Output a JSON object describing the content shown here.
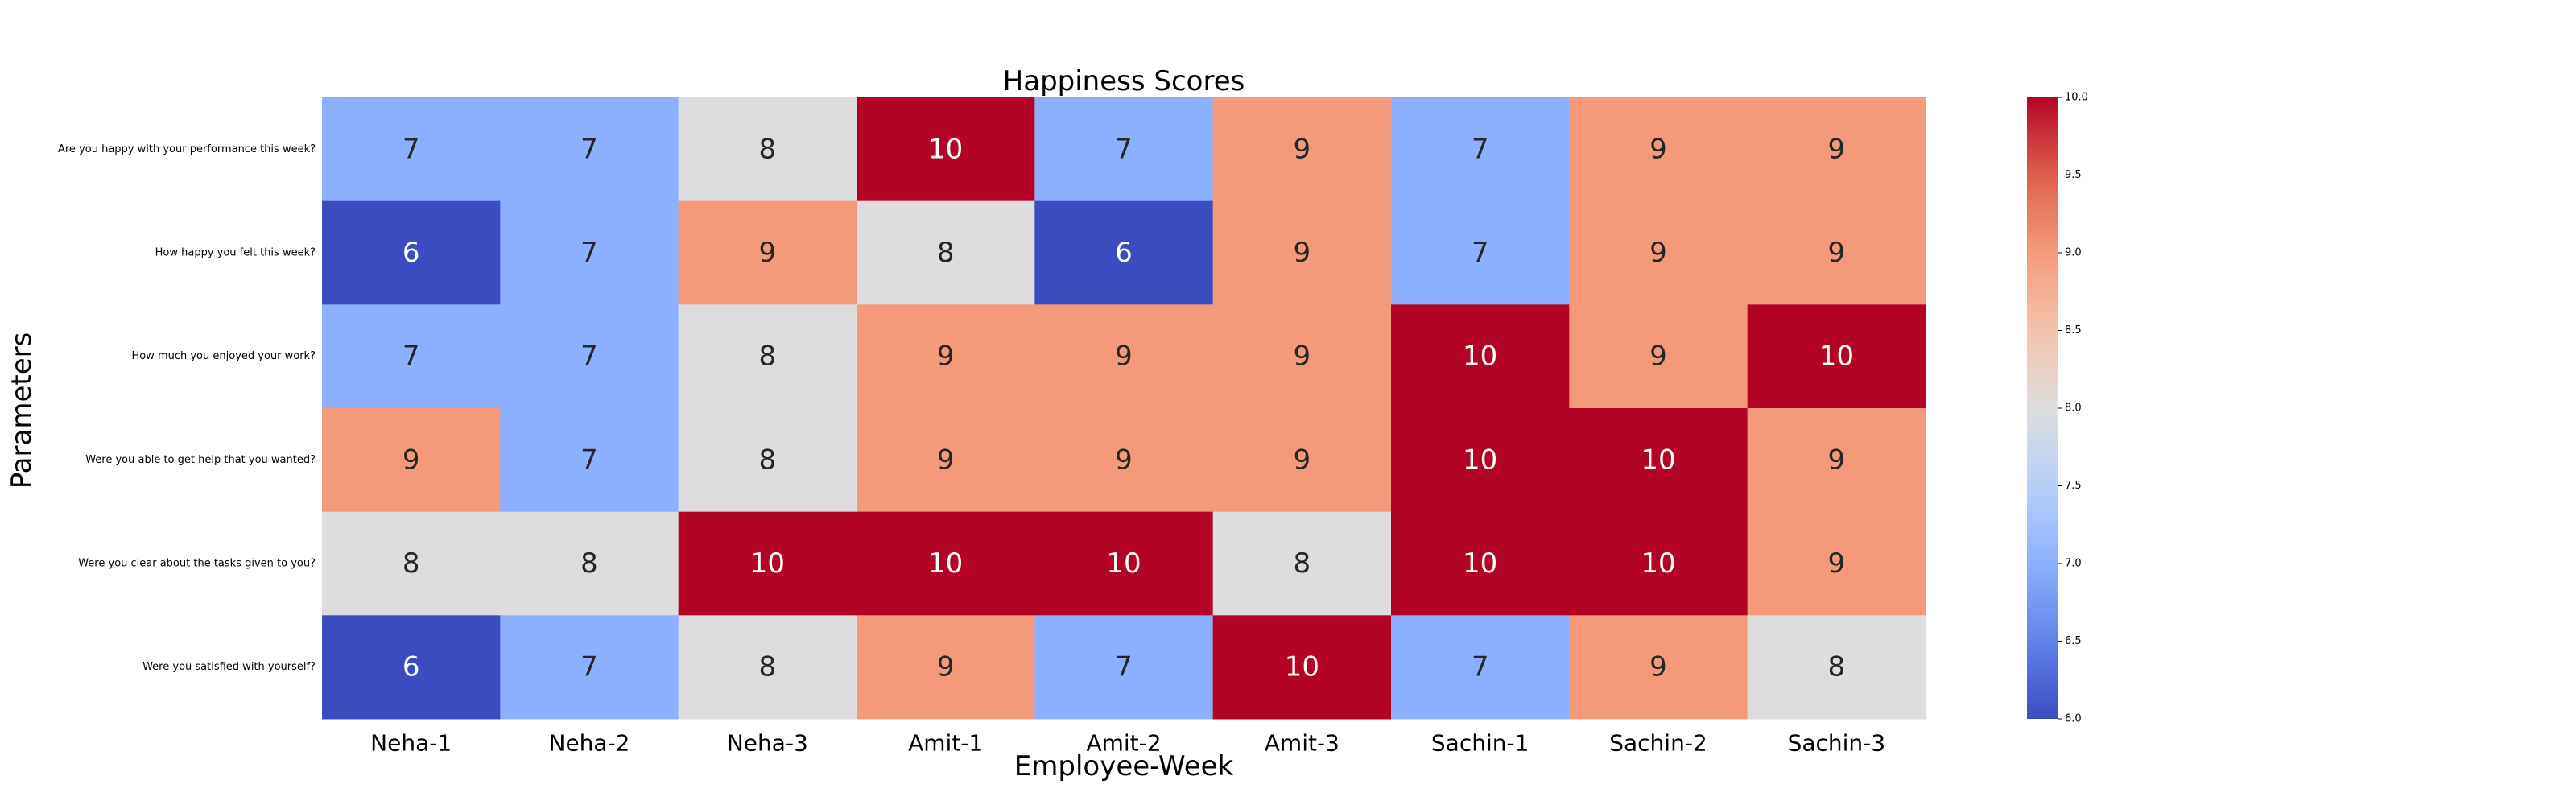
{
  "chart_data": {
    "type": "heatmap",
    "title": "Happiness Scores",
    "xlabel": "Employee-Week",
    "ylabel": "Parameters",
    "x_categories": [
      "Neha-1",
      "Neha-2",
      "Neha-3",
      "Amit-1",
      "Amit-2",
      "Amit-3",
      "Sachin-1",
      "Sachin-2",
      "Sachin-3"
    ],
    "y_categories": [
      "Are you happy with your performance this week?",
      "How happy you felt this week?",
      "How much you enjoyed your work?",
      "Were you able to get help that you wanted?",
      "Were you clear about the tasks given to you?",
      "Were you satisfied with yourself?"
    ],
    "values": [
      [
        7,
        7,
        8,
        10,
        7,
        9,
        7,
        9,
        9
      ],
      [
        6,
        7,
        9,
        8,
        6,
        9,
        7,
        9,
        9
      ],
      [
        7,
        7,
        8,
        9,
        9,
        9,
        10,
        9,
        10
      ],
      [
        9,
        7,
        8,
        9,
        9,
        9,
        10,
        10,
        9
      ],
      [
        8,
        8,
        10,
        10,
        10,
        8,
        10,
        10,
        9
      ],
      [
        6,
        7,
        8,
        9,
        7,
        10,
        7,
        9,
        8
      ]
    ],
    "colormap": "coolwarm",
    "vmin": 6.0,
    "vmax": 10.0,
    "colorbar_ticks": [
      "6.0",
      "6.5",
      "7.0",
      "7.5",
      "8.0",
      "8.5",
      "9.0",
      "9.5",
      "10.0"
    ],
    "colorbar_tick_values": [
      6.0,
      6.5,
      7.0,
      7.5,
      8.0,
      8.5,
      9.0,
      9.5,
      10.0
    ],
    "annotations": true
  }
}
